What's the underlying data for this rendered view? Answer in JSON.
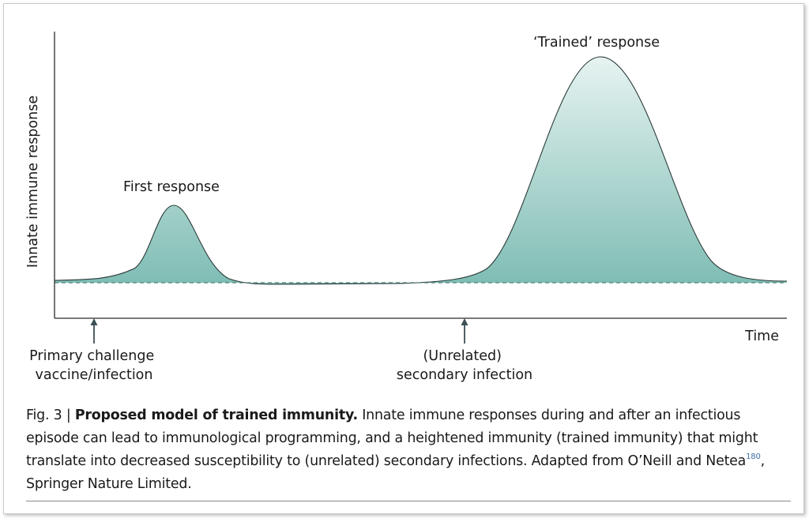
{
  "diagram": {
    "y_axis_label": "Innate immune response",
    "x_axis_label": "Time",
    "peak_labels": {
      "first": "First response",
      "trained": "‘Trained’ response"
    },
    "markers": {
      "primary": [
        "Primary challenge",
        "vaccine/infection"
      ],
      "secondary": [
        "(Unrelated)",
        "secondary infection"
      ]
    },
    "colors": {
      "fill_top": "#e6f3f1",
      "fill_bottom": "#7fbdb4",
      "outline": "#2b3a3a",
      "baseline": "#4f7f7c",
      "axis": "#2b2b2b",
      "arrow": "#3c4f56"
    }
  },
  "caption": {
    "figure_number": "Fig. 3 |",
    "title": "Proposed model of trained immunity.",
    "text": "Innate immune responses during and after an infectious episode can lead to immunological programming, and a heightened immunity (trained immunity) that might translate into decreased susceptibility to (unrelated) secondary infections. Adapted from O’Neill and Netea",
    "ref": "180",
    "source": ", Springer Nature Limited."
  }
}
